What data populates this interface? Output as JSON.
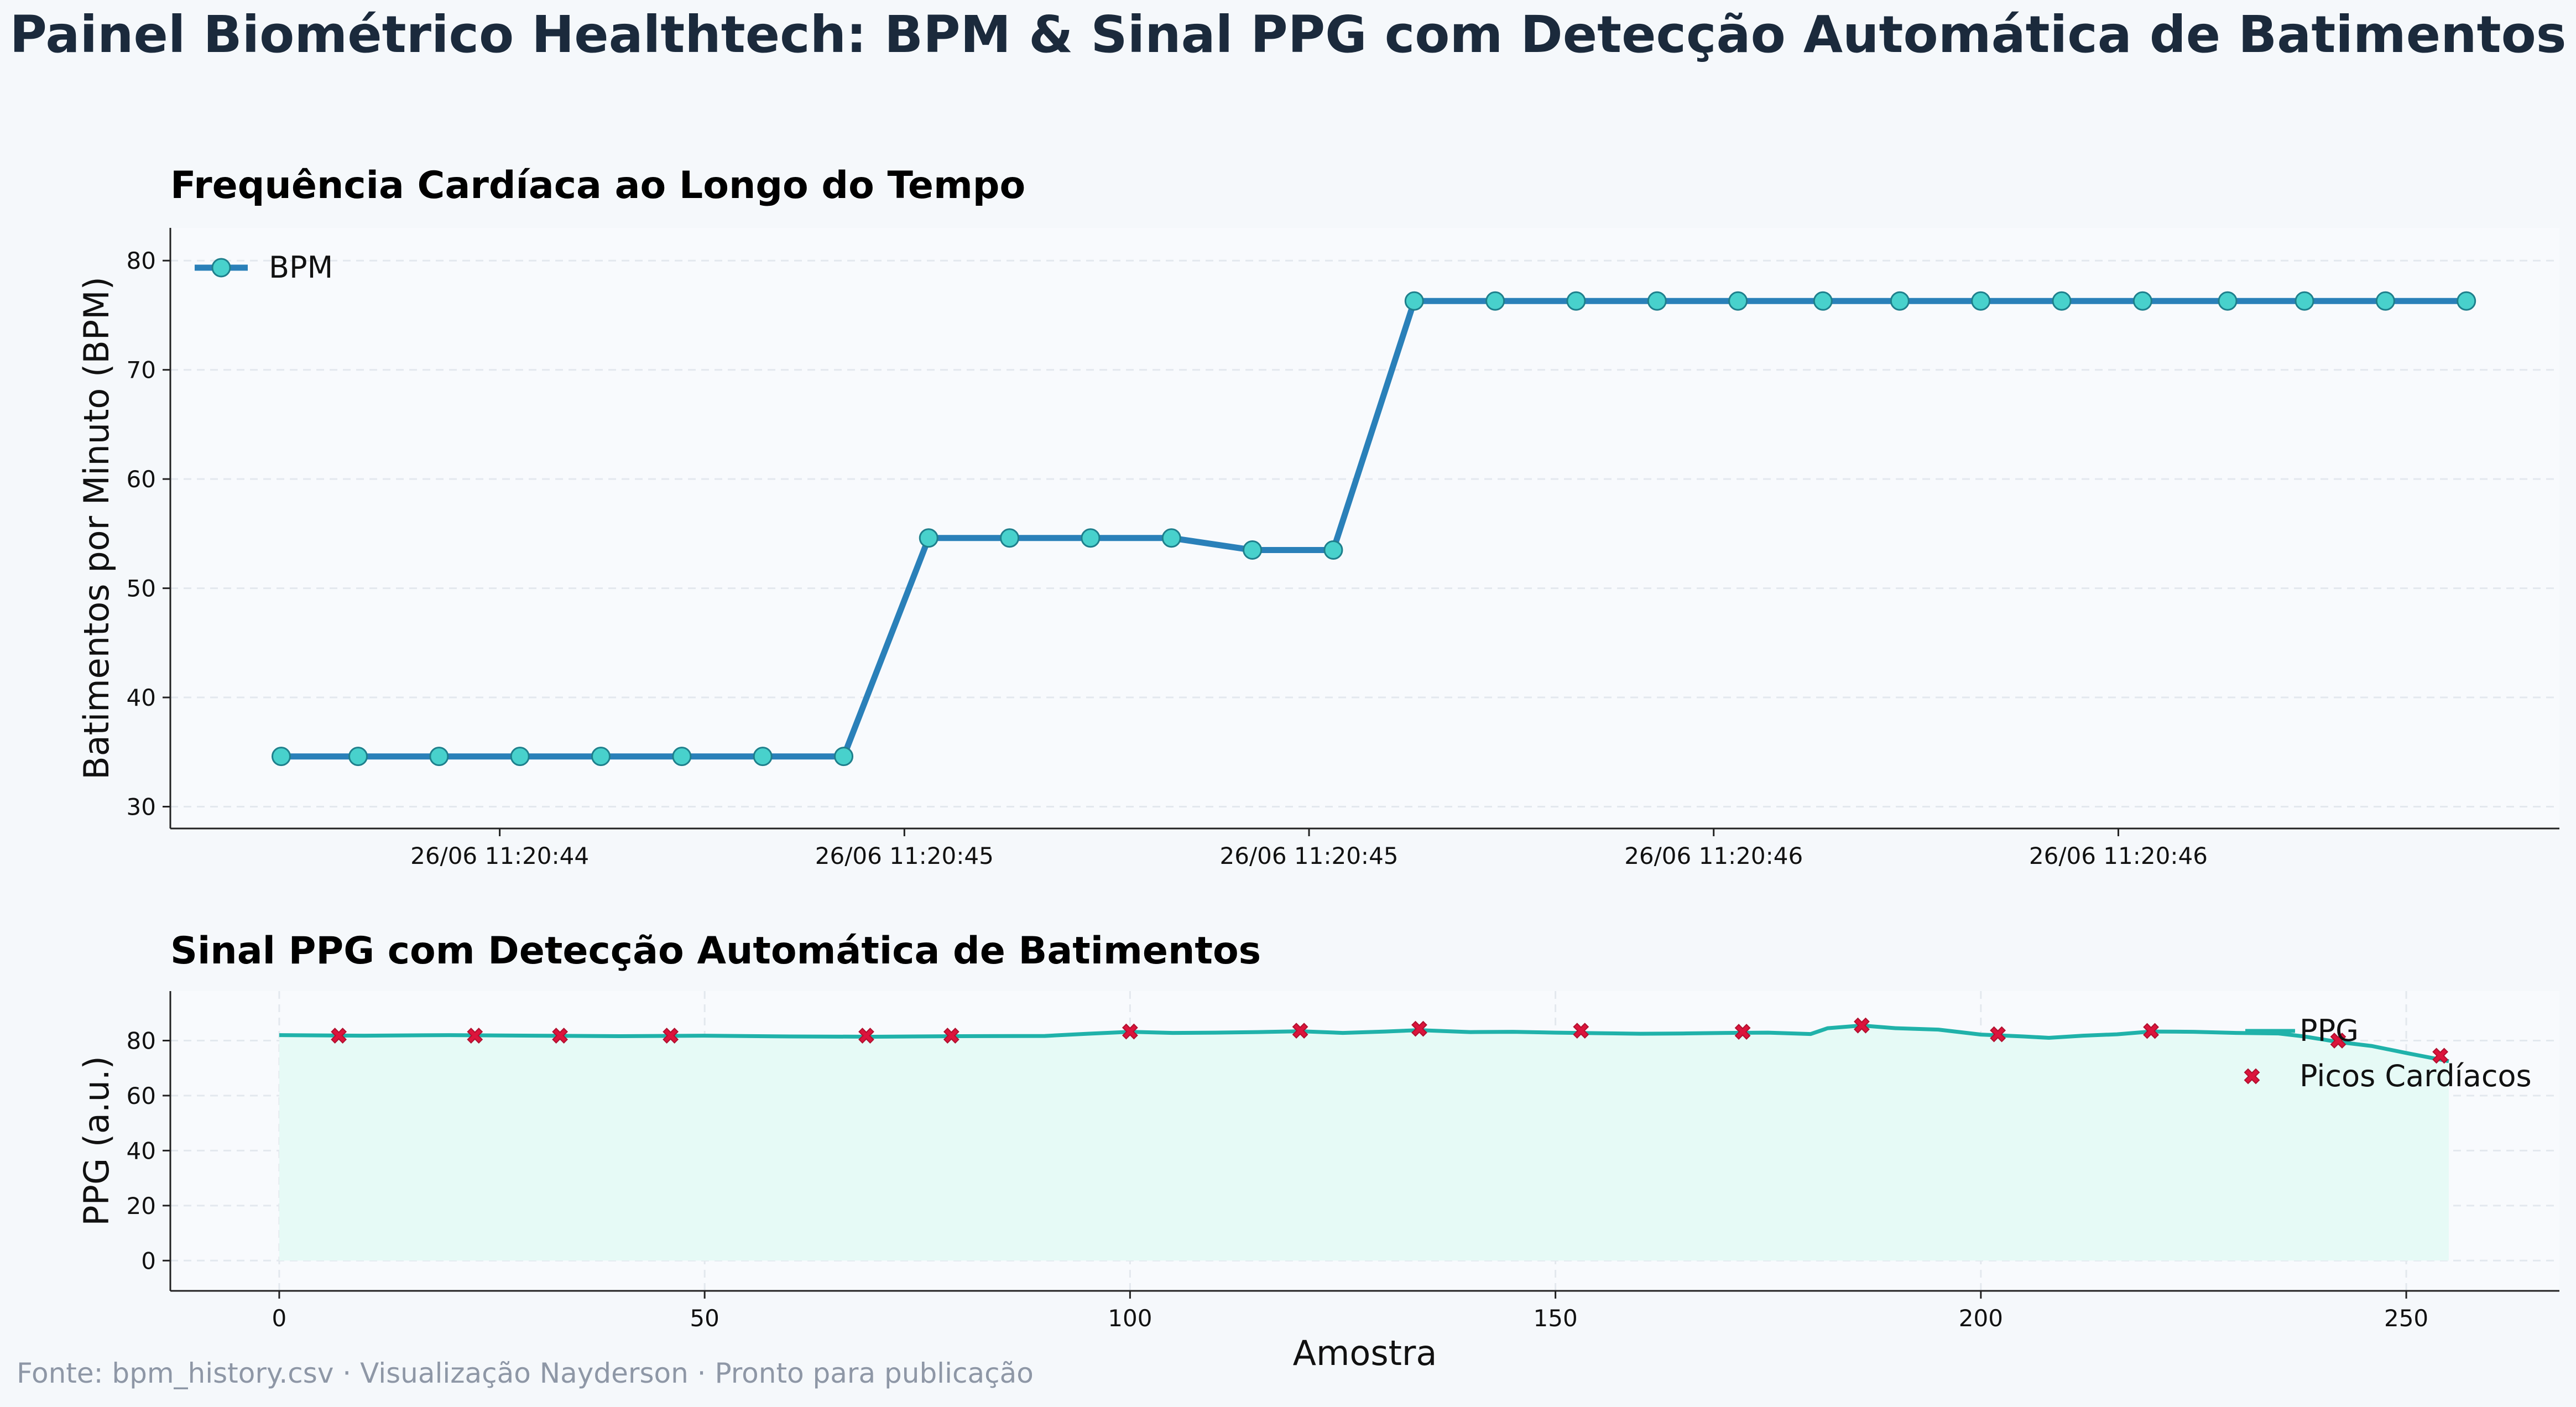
{
  "title": "Painel Biométrico Healthtech: BPM & Sinal PPG com Detecção Automática de Batimentos",
  "footer": "Fonte: bpm_history.csv  ·  Visualização Nayderson · Pronto para publicação",
  "colors": {
    "bpm_line": "#2a80b9",
    "bpm_marker": "#48d1cc",
    "ppg_line": "#20b2aa",
    "ppg_fill": "#e6faf6",
    "peaks": "#dc143c",
    "axes_bg": "#f8fafd",
    "title": "#1b2a3c",
    "footer": "#8e97a6"
  },
  "chart_data": [
    {
      "type": "line",
      "title": "Frequência Cardíaca ao Longo do Tempo",
      "xlabel": "",
      "ylabel": "Batimentos por Minuto (BPM)",
      "ylim": [
        28,
        83
      ],
      "yticks": [
        30,
        40,
        50,
        60,
        70,
        80
      ],
      "xlim": [
        -0.57,
        28.95
      ],
      "xtick_positions": [
        3.5,
        8.5,
        13.5,
        18.5,
        23.5
      ],
      "xtick_labels": [
        "26/06 11:20:44",
        "26/06 11:20:45",
        "26/06 11:20:45",
        "26/06 11:20:46",
        "26/06 11:20:46"
      ],
      "grid": "y dashed",
      "legend": "upper-left",
      "series": [
        {
          "name": "BPM",
          "x": [
            0.8,
            1.75,
            2.75,
            3.75,
            4.75,
            5.75,
            6.75,
            7.75,
            8.8,
            9.8,
            10.8,
            11.8,
            12.8,
            13.8,
            14.8,
            15.8,
            16.8,
            17.8,
            18.8,
            19.85,
            20.8,
            21.8,
            22.8,
            23.8,
            24.85,
            25.8,
            26.8,
            27.8
          ],
          "values": [
            34.6,
            34.6,
            34.6,
            34.6,
            34.6,
            34.6,
            34.6,
            34.6,
            54.6,
            54.6,
            54.6,
            54.6,
            53.5,
            53.5,
            76.3,
            76.3,
            76.3,
            76.3,
            76.3,
            76.3,
            76.3,
            76.3,
            76.3,
            76.3,
            76.3,
            76.3,
            76.3,
            76.3
          ]
        }
      ]
    },
    {
      "type": "area",
      "title": "Sinal PPG com Detecção Automática de Batimentos",
      "xlabel": "Amostra",
      "ylabel": "PPG (a.u.)",
      "xlim": [
        -12.8,
        268
      ],
      "ylim": [
        -11,
        98
      ],
      "xticks": [
        0,
        50,
        100,
        150,
        200,
        250
      ],
      "yticks": [
        0,
        20,
        40,
        60,
        80
      ],
      "grid": "both dashed",
      "legend": "right",
      "series": [
        {
          "name": "PPG",
          "x": [
            0,
            10,
            20,
            30,
            40,
            50,
            60,
            70,
            80,
            90,
            95,
            100,
            105,
            110,
            115,
            120,
            125,
            130,
            134,
            140,
            145,
            150,
            155,
            160,
            165,
            170,
            175,
            180,
            182,
            186,
            190,
            195,
            200,
            205,
            208,
            212,
            216,
            220,
            225,
            230,
            235,
            238,
            242,
            246,
            250,
            255
          ],
          "values": [
            82,
            81.8,
            82,
            81.8,
            81.6,
            81.8,
            81.5,
            81.4,
            81.6,
            81.7,
            82.5,
            83.2,
            82.8,
            82.9,
            83.1,
            83.4,
            82.8,
            83.3,
            83.8,
            83.1,
            83.2,
            82.9,
            82.7,
            82.5,
            82.6,
            82.8,
            82.9,
            82.4,
            84.5,
            85.5,
            84.5,
            84,
            82.2,
            81.5,
            81,
            81.8,
            82.3,
            83.3,
            83.2,
            82.8,
            82.6,
            81.5,
            79.5,
            78,
            75.5,
            72.5
          ]
        },
        {
          "name": "Picos Cardíacos",
          "type": "scatter",
          "x": [
            7,
            23,
            33,
            46,
            69,
            79,
            100,
            120,
            134,
            153,
            172,
            186,
            202,
            220,
            242,
            254
          ],
          "values": [
            81.8,
            81.8,
            81.8,
            81.8,
            81.8,
            81.8,
            83.3,
            83.6,
            84.3,
            83.6,
            83.2,
            85.5,
            82.3,
            83.5,
            80,
            74.5
          ]
        }
      ]
    }
  ]
}
